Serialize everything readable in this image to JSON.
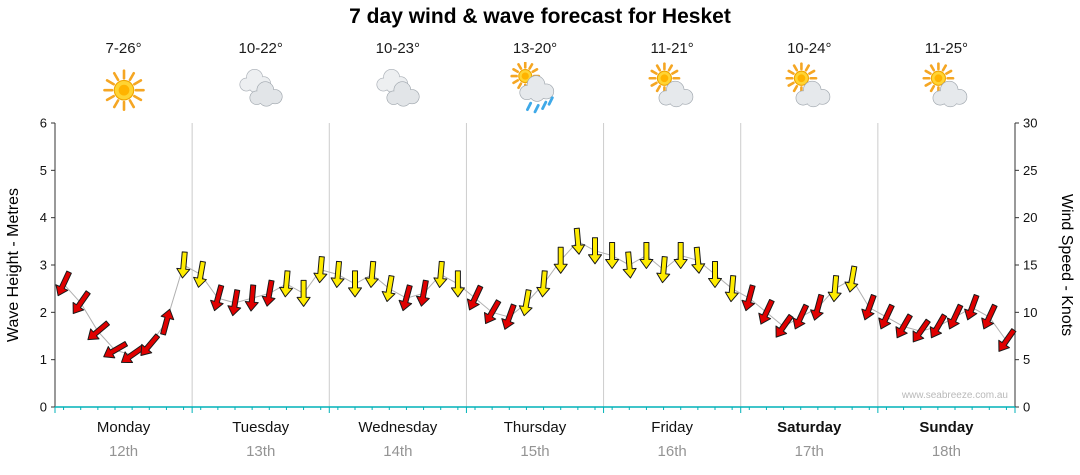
{
  "title": "7 day wind & wave forecast for Hesket",
  "watermark": "www.seabreeze.com.au",
  "days": [
    {
      "name": "Monday",
      "date": "12th",
      "temp": "7-26°",
      "icon": "sunny",
      "bold": false
    },
    {
      "name": "Tuesday",
      "date": "13th",
      "temp": "10-22°",
      "icon": "cloudy",
      "bold": false
    },
    {
      "name": "Wednesday",
      "date": "14th",
      "temp": "10-23°",
      "icon": "cloudy",
      "bold": false
    },
    {
      "name": "Thursday",
      "date": "15th",
      "temp": "13-20°",
      "icon": "sun-showers",
      "bold": false
    },
    {
      "name": "Friday",
      "date": "16th",
      "temp": "11-21°",
      "icon": "partly-cloudy",
      "bold": false
    },
    {
      "name": "Saturday",
      "date": "17th",
      "temp": "10-24°",
      "icon": "partly-cloudy",
      "bold": true
    },
    {
      "name": "Sunday",
      "date": "18th",
      "temp": "11-25°",
      "icon": "partly-cloudy",
      "bold": true
    }
  ],
  "chart_data": {
    "type": "wind-arrows",
    "title": "7 day wind & wave forecast for Hesket",
    "left_axis": {
      "label": "Wave Height - Metres",
      "min": 0,
      "max": 6,
      "ticks": [
        0,
        1,
        2,
        3,
        4,
        5,
        6
      ]
    },
    "right_axis": {
      "label": "Wind Speed - Knots",
      "min": 0,
      "max": 30,
      "ticks": [
        0,
        5,
        10,
        15,
        20,
        25,
        30
      ]
    },
    "x_categories": [
      "Monday",
      "Tuesday",
      "Wednesday",
      "Thursday",
      "Friday",
      "Saturday",
      "Sunday"
    ],
    "points_per_day": 8,
    "colors": {
      "red": "#E00000",
      "yellow": "#FFEC00",
      "line": "#b0b0b0"
    },
    "series": {
      "name": "Wind speed (knots, 3-hourly) with direction arrows",
      "knots": [
        13,
        11,
        8,
        6,
        5.5,
        6.5,
        9,
        15,
        14,
        11.5,
        11,
        11.5,
        12,
        13,
        12,
        14.5,
        14,
        13,
        14,
        12.5,
        11.5,
        12,
        14,
        13,
        11.5,
        10,
        9.5,
        11,
        13,
        15.5,
        17.5,
        16.5,
        16,
        15,
        16,
        14.5,
        16,
        15.5,
        14,
        12.5,
        11.5,
        10,
        8.5,
        9.5,
        10.5,
        12.5,
        13.5,
        10.5,
        9.5,
        8.5,
        8,
        8.5,
        9.5,
        10.5,
        9.5,
        7
      ],
      "color": [
        "red",
        "red",
        "red",
        "red",
        "red",
        "red",
        "red",
        "yellow",
        "yellow",
        "red",
        "red",
        "red",
        "red",
        "yellow",
        "yellow",
        "yellow",
        "yellow",
        "yellow",
        "yellow",
        "yellow",
        "red",
        "red",
        "yellow",
        "yellow",
        "red",
        "red",
        "red",
        "yellow",
        "yellow",
        "yellow",
        "yellow",
        "yellow",
        "yellow",
        "yellow",
        "yellow",
        "yellow",
        "yellow",
        "yellow",
        "yellow",
        "yellow",
        "red",
        "red",
        "red",
        "red",
        "red",
        "yellow",
        "yellow",
        "red",
        "red",
        "red",
        "red",
        "red",
        "red",
        "red",
        "red",
        "red"
      ],
      "direction_deg": [
        205,
        215,
        230,
        240,
        235,
        220,
        15,
        185,
        190,
        195,
        190,
        185,
        190,
        185,
        180,
        185,
        185,
        180,
        185,
        190,
        195,
        190,
        185,
        180,
        205,
        210,
        200,
        190,
        185,
        180,
        175,
        180,
        180,
        175,
        180,
        185,
        180,
        175,
        180,
        185,
        195,
        205,
        215,
        205,
        195,
        185,
        190,
        200,
        205,
        210,
        215,
        210,
        205,
        200,
        205,
        215
      ]
    }
  }
}
